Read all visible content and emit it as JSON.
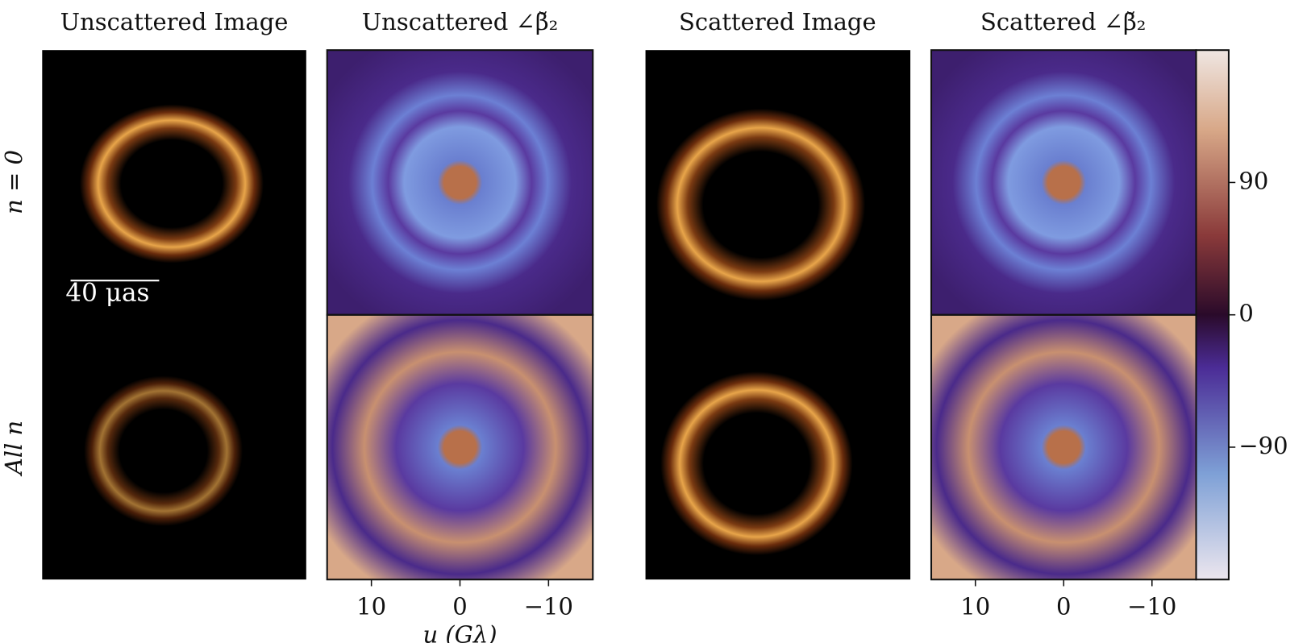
{
  "columns": [
    {
      "title": "Unscattered Image"
    },
    {
      "title": "Unscattered ∠β̆₂"
    },
    {
      "title": "Scattered Image"
    },
    {
      "title": "Scattered ∠β̆₂"
    }
  ],
  "rows": [
    {
      "label": "n = 0"
    },
    {
      "label": "All n"
    }
  ],
  "scale_bar": "40 μas",
  "x_axis": {
    "label": "u (Gλ)",
    "xlim": [
      15,
      -15
    ],
    "xticks": [
      10,
      0,
      {
        "value": -10,
        "label": "−10"
      }
    ]
  },
  "colorbar": {
    "lim": [
      -180,
      180
    ],
    "ticks": [
      90,
      0,
      {
        "value": -90,
        "label": "−90"
      }
    ]
  }
}
